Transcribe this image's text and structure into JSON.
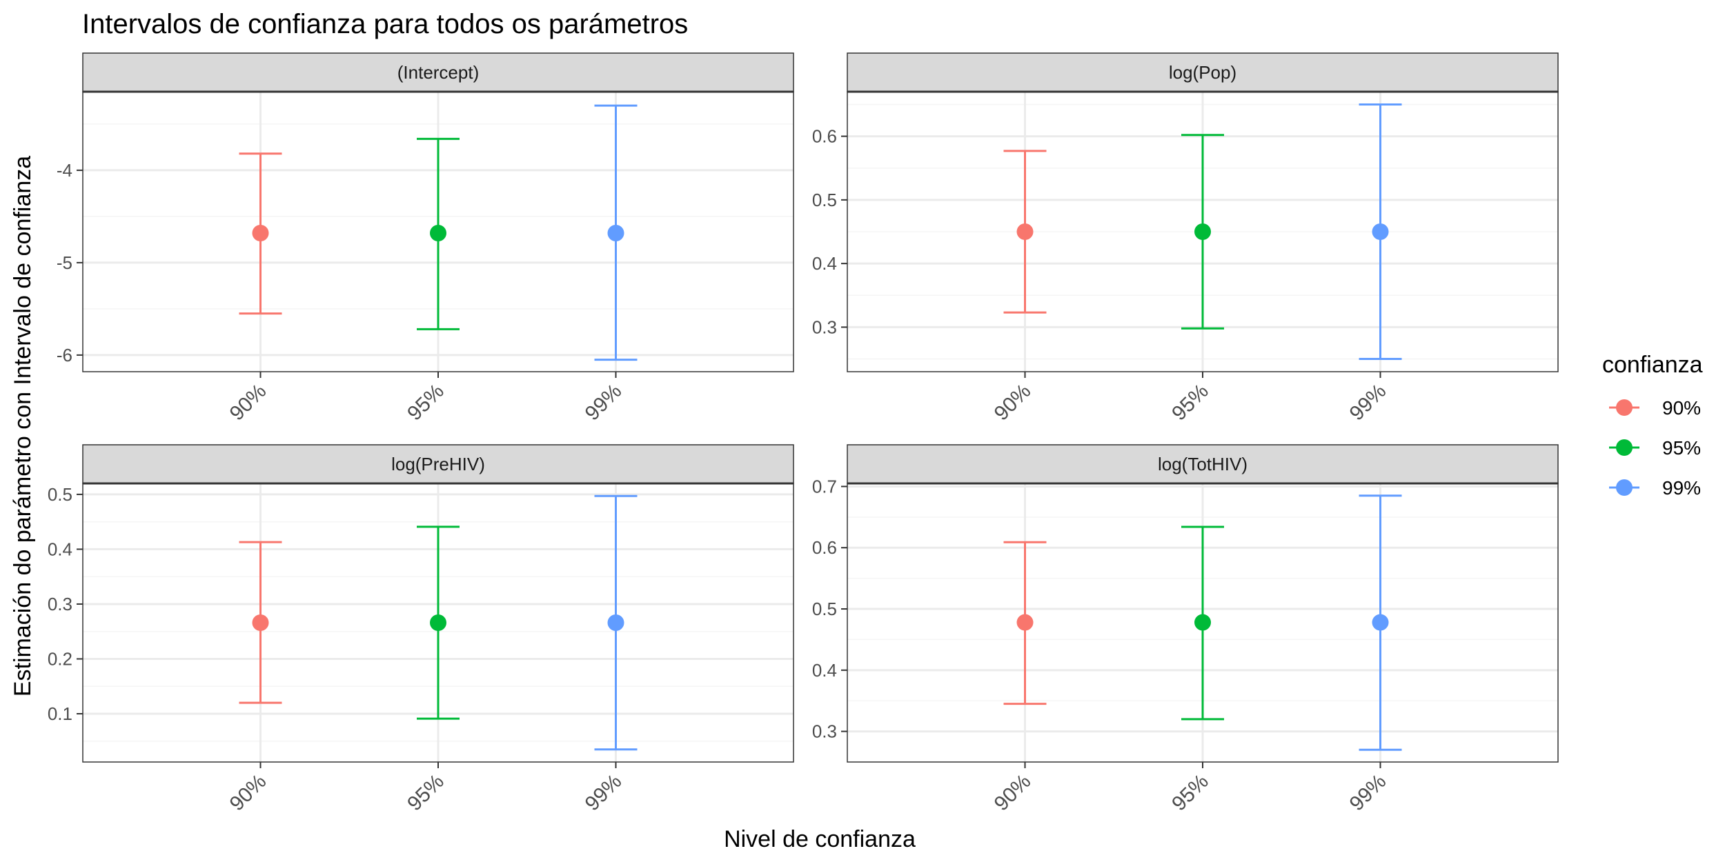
{
  "title": "Intervalos de confianza para todos os parámetros",
  "xlabel": "Nivel de confianza",
  "ylabel": "Estimación do parámetro con Intervalo de confianza",
  "legend": {
    "title": "confianza",
    "position": "right",
    "entries": [
      "90%",
      "95%",
      "99%"
    ]
  },
  "colors": {
    "90%": "#F8766D",
    "95%": "#00BA38",
    "99%": "#619CFF",
    "strip_bg": "#D9D9D9",
    "grid_major": "#EBEBEB",
    "grid_minor": "#F5F5F5",
    "panel_border": "#333333",
    "axis_text": "#4D4D4D"
  },
  "chart_data": {
    "type": "errorbar",
    "grid": true,
    "categories": [
      "90%",
      "95%",
      "99%"
    ],
    "panels": [
      {
        "strip": "(Intercept)",
        "ylim": [
          -6.18,
          -3.15
        ],
        "yticks": [
          -6,
          -5,
          -4
        ],
        "ytick_labels": [
          "-6",
          "-5",
          "-4"
        ],
        "estimate": -4.68,
        "lower": [
          -5.55,
          -5.72,
          -6.05
        ],
        "upper": [
          -3.82,
          -3.66,
          -3.3
        ]
      },
      {
        "strip": "log(Pop)",
        "ylim": [
          0.23,
          0.67
        ],
        "yticks": [
          0.3,
          0.4,
          0.5,
          0.6
        ],
        "ytick_labels": [
          "0.3",
          "0.4",
          "0.5",
          "0.6"
        ],
        "estimate": 0.45,
        "lower": [
          0.323,
          0.298,
          0.25
        ],
        "upper": [
          0.577,
          0.602,
          0.65
        ]
      },
      {
        "strip": "log(PreHIV)",
        "ylim": [
          0.012,
          0.52
        ],
        "yticks": [
          0.1,
          0.2,
          0.3,
          0.4,
          0.5
        ],
        "ytick_labels": [
          "0.1",
          "0.2",
          "0.3",
          "0.4",
          "0.5"
        ],
        "estimate": 0.266,
        "lower": [
          0.12,
          0.091,
          0.035
        ],
        "upper": [
          0.413,
          0.441,
          0.497
        ]
      },
      {
        "strip": "log(TotHIV)",
        "ylim": [
          0.25,
          0.705
        ],
        "yticks": [
          0.3,
          0.4,
          0.5,
          0.6,
          0.7
        ],
        "ytick_labels": [
          "0.3",
          "0.4",
          "0.5",
          "0.6",
          "0.7"
        ],
        "estimate": 0.478,
        "lower": [
          0.345,
          0.32,
          0.27
        ],
        "upper": [
          0.609,
          0.634,
          0.685
        ]
      }
    ]
  }
}
